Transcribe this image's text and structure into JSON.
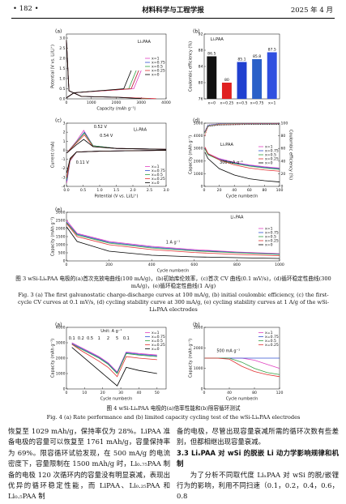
{
  "header": {
    "page": "• 182 •",
    "journal": "材料科学与工程学报",
    "date": "2025 年 4 月"
  },
  "chart_data": [
    {
      "type": "line",
      "label": "(a)",
      "annotations": [
        "LiₓPAA"
      ],
      "xlabel": "Capacity (mAh g⁻¹)",
      "ylabel": "Potential (V vs. Li/Li⁺)",
      "xlim": [
        0,
        4000
      ],
      "xticks": [
        0,
        1000,
        2000,
        3000,
        4000
      ],
      "ylim": [
        0,
        3.2
      ],
      "yticks": [
        {
          "value": 0,
          "label": "0.0"
        },
        0.5,
        {
          "value": 1,
          "label": "1.0"
        },
        1.5,
        {
          "value": 2,
          "label": "2.0"
        },
        2.5,
        {
          "value": 3,
          "label": "3.0"
        }
      ],
      "legend": "center right",
      "series": [
        {
          "name": "x=1",
          "color": "#e040c0",
          "x": [
            0,
            100,
            600,
            2000,
            3500,
            null,
            0,
            300,
            2700,
            3000
          ],
          "values": [
            2.9,
            0.4,
            0.12,
            0.08,
            0.01,
            null,
            0.05,
            0.3,
            0.5,
            1.4
          ]
        },
        {
          "name": "x=0.75",
          "color": "#3050d0",
          "x": [
            0,
            100,
            600,
            2000,
            3400,
            null,
            0,
            300,
            2600,
            2900
          ],
          "values": [
            2.9,
            0.4,
            0.12,
            0.08,
            0.01,
            null,
            0.05,
            0.3,
            0.5,
            1.4
          ]
        },
        {
          "name": "x=0.5",
          "color": "#30a040",
          "x": [
            0,
            100,
            600,
            2000,
            3300,
            null,
            0,
            300,
            2500,
            2800
          ],
          "values": [
            2.9,
            0.4,
            0.12,
            0.08,
            0.01,
            null,
            0.05,
            0.3,
            0.5,
            1.4
          ]
        },
        {
          "name": "x=0.25",
          "color": "#e03030",
          "x": [
            0,
            100,
            600,
            2000,
            3600,
            null,
            0,
            300,
            2600,
            2900
          ],
          "values": [
            2.9,
            0.4,
            0.12,
            0.08,
            0.01,
            null,
            0.05,
            0.3,
            0.5,
            1.4
          ]
        },
        {
          "name": "x=0",
          "color": "#000000",
          "x": [
            0,
            100,
            600,
            2000,
            3000,
            null,
            0,
            300,
            2300,
            2600
          ],
          "values": [
            2.9,
            0.4,
            0.12,
            0.08,
            0.01,
            null,
            0.05,
            0.3,
            0.5,
            1.4
          ]
        }
      ]
    },
    {
      "type": "bar",
      "label": "(b)",
      "annotations": [
        "LiₓPAA"
      ],
      "ylabel": "Coulombic efficiency (%)",
      "categories": [
        "x=0",
        "x=0.25",
        "x=0.5",
        "x=0.75",
        "x=1"
      ],
      "values": [
        86.5,
        80,
        85.1,
        85.8,
        87.5
      ],
      "colors": [
        "#111111",
        "#e02020",
        "#2040d0",
        "#2a60c8",
        "#3050e0"
      ],
      "ylim": [
        76,
        92
      ],
      "yticks": [
        76,
        80,
        84,
        88,
        92
      ]
    },
    {
      "type": "line",
      "label": "(c)",
      "annotations": [
        "LiₓPAA",
        "0.52 V",
        "0.54 V",
        "0.11 V"
      ],
      "xlabel": "Potential (V vs. Li/Li⁺)",
      "ylabel": "Current (mA)",
      "xlim": [
        0,
        3
      ],
      "xticks": [
        {
          "value": 0,
          "label": "0.0"
        },
        0.5,
        {
          "value": 1,
          "label": "1.0"
        },
        1.5,
        {
          "value": 2,
          "label": "2.0"
        },
        2.5,
        {
          "value": 3,
          "label": "3.0"
        }
      ],
      "ylim": [
        -4,
        3
      ],
      "yticks": [
        -4,
        -3,
        -2,
        -1,
        0,
        1,
        2,
        3
      ],
      "legend": "lower right",
      "series": [
        {
          "name": "x=1",
          "color": "#e040c0",
          "x": [
            0.01,
            0.11,
            0.3,
            1,
            2,
            3,
            null,
            0.01,
            0.3,
            0.52,
            0.8,
            1.5,
            3
          ],
          "values": [
            -3.6,
            -1.2,
            -0.2,
            -0.1,
            -0.05,
            0,
            null,
            -0.3,
            1,
            2.2,
            0.5,
            0.2,
            0.1
          ]
        },
        {
          "name": "x=0.75",
          "color": "#3050d0",
          "x": [
            0.01,
            0.11,
            0.3,
            1,
            2,
            3,
            null,
            0.01,
            0.3,
            0.54,
            0.8,
            1.5,
            3
          ],
          "values": [
            -3.4,
            -1.1,
            -0.2,
            -0.1,
            -0.05,
            0,
            null,
            -0.3,
            0.9,
            2,
            0.5,
            0.2,
            0.1
          ]
        },
        {
          "name": "x=0.5",
          "color": "#30a040",
          "x": [
            0.01,
            0.11,
            0.3,
            1,
            2,
            3,
            null,
            0.01,
            0.3,
            0.54,
            0.8,
            1.5,
            3
          ],
          "values": [
            -3.2,
            -1.1,
            -0.2,
            -0.1,
            -0.05,
            0,
            null,
            -0.3,
            0.9,
            1.9,
            0.5,
            0.2,
            0.1
          ]
        },
        {
          "name": "x=0.25",
          "color": "#e03030",
          "x": [
            0.01,
            0.11,
            0.3,
            1,
            2,
            3,
            null,
            0.01,
            0.3,
            0.54,
            0.8,
            1.5,
            3
          ],
          "values": [
            -3,
            -1,
            -0.2,
            -0.1,
            -0.05,
            0,
            null,
            -0.3,
            0.8,
            1.7,
            0.4,
            0.2,
            0.1
          ]
        },
        {
          "name": "x=0",
          "color": "#000000",
          "x": [
            0.01,
            0.11,
            0.3,
            1,
            2,
            3,
            null,
            0.01,
            0.3,
            0.52,
            0.8,
            1.5,
            3
          ],
          "values": [
            -2.5,
            -0.9,
            -0.2,
            -0.1,
            -0.05,
            0,
            null,
            -0.3,
            0.6,
            1.2,
            0.4,
            0.2,
            0.1
          ]
        }
      ]
    },
    {
      "type": "line",
      "label": "(d)",
      "annotations": [
        "LiₓPAA",
        "300 mA g⁻¹"
      ],
      "xlabel": "Cycle number/n",
      "ylabel": "Capacity (mAh g⁻¹)",
      "y2label": "Coulombic efficiency (%)",
      "xlim": [
        0,
        100
      ],
      "xticks": [
        0,
        20,
        40,
        60,
        80,
        100
      ],
      "ylim": [
        0,
        5000
      ],
      "yticks": [
        0,
        1000,
        2000,
        3000,
        4000,
        5000
      ],
      "y2lim": [
        0,
        100
      ],
      "y2ticks": [
        0,
        20,
        40,
        60,
        80,
        100
      ],
      "legend": "center right",
      "x": [
        1,
        5,
        20,
        40,
        60,
        80,
        100
      ],
      "series": [
        {
          "name": "x=1",
          "color": "#e040c0",
          "values": [
            3100,
            2600,
            2200,
            1900,
            1700,
            1550,
            1450
          ]
        },
        {
          "name": "x=0.75",
          "color": "#3050d0",
          "values": [
            3000,
            2550,
            2150,
            1850,
            1650,
            1500,
            1400
          ]
        },
        {
          "name": "x=0.5",
          "color": "#30a040",
          "values": [
            2950,
            2500,
            2100,
            1800,
            1600,
            1450,
            1350
          ]
        },
        {
          "name": "x=0.25",
          "color": "#e03030",
          "values": [
            3100,
            2600,
            2100,
            1700,
            1450,
            1300,
            1200
          ]
        },
        {
          "name": "x=0",
          "color": "#000000",
          "values": [
            2700,
            2200,
            1400,
            900,
            600,
            450,
            350
          ]
        },
        {
          "color": "#e040c0",
          "axis": "y2",
          "values": [
            87,
            97,
            99,
            99,
            99.5,
            99.5,
            99.5
          ]
        },
        {
          "color": "#3050d0",
          "axis": "y2",
          "values": [
            86,
            97,
            99,
            99,
            99.5,
            99.5,
            99.5
          ]
        },
        {
          "color": "#30a040",
          "axis": "y2",
          "values": [
            85,
            96,
            98.5,
            99,
            99,
            99,
            99
          ]
        },
        {
          "color": "#e03030",
          "axis": "y2",
          "values": [
            80,
            95,
            98,
            98.5,
            99,
            99,
            99
          ]
        },
        {
          "color": "#000000",
          "axis": "y2",
          "values": [
            86,
            95,
            97,
            97.5,
            98,
            98,
            98
          ]
        }
      ]
    },
    {
      "type": "line",
      "label": "(e)",
      "annotations": [
        "LiₓPAA",
        "1 A g⁻¹"
      ],
      "xlabel": "Cycle number/n",
      "ylabel": "Capacity (mAh g⁻¹)",
      "xlim": [
        0,
        1000
      ],
      "xticks": [
        0,
        200,
        400,
        600,
        800,
        1000
      ],
      "ylim": [
        0,
        3000
      ],
      "yticks": [
        0,
        500,
        1000,
        1500,
        2000,
        2500,
        3000
      ],
      "legend": "center right",
      "x": [
        1,
        50,
        200,
        400,
        600,
        800,
        1000
      ],
      "series": [
        {
          "name": "x=1",
          "color": "#e040c0",
          "values": [
            2500,
            1700,
            1200,
            900,
            700,
            550,
            450
          ]
        },
        {
          "name": "x=0.75",
          "color": "#3050d0",
          "values": [
            2400,
            1650,
            1150,
            850,
            650,
            520,
            420
          ]
        },
        {
          "name": "x=0.5",
          "color": "#30a040",
          "values": [
            2350,
            1600,
            1100,
            800,
            620,
            500,
            400
          ]
        },
        {
          "name": "x=0.25",
          "color": "#e03030",
          "values": [
            2300,
            1500,
            1000,
            700,
            520,
            400,
            320
          ]
        },
        {
          "name": "x=0",
          "color": "#000000",
          "values": [
            2100,
            1200,
            600,
            350,
            250,
            200,
            150
          ]
        }
      ]
    },
    {
      "type": "line",
      "label": "(a)",
      "annotations": [
        "Unit: A g⁻¹",
        "0.1",
        "0.2",
        "0.5",
        "1",
        "2",
        "5",
        "0.1"
      ],
      "xlabel": "Cycle number/n",
      "ylabel": "Capacity (mAh g⁻¹)",
      "xlim": [
        0,
        55
      ],
      "xticks": [
        0,
        10,
        20,
        30,
        40,
        50
      ],
      "ylim": [
        0,
        4000
      ],
      "yticks": [
        0,
        1000,
        2000,
        3000,
        4000
      ],
      "legend": "upper right",
      "x": [
        3,
        8,
        13,
        18,
        23,
        28,
        33,
        40,
        50
      ],
      "series": [
        {
          "name": "x=1",
          "color": "#e040c0",
          "values": [
            3000,
            2700,
            2400,
            2100,
            1700,
            1100,
            2400,
            2300,
            2200
          ]
        },
        {
          "name": "x=0.75",
          "color": "#3050d0",
          "values": [
            2950,
            2650,
            2350,
            2050,
            1650,
            1050,
            2350,
            2250,
            2150
          ]
        },
        {
          "name": "x=0.5",
          "color": "#30a040",
          "values": [
            2900,
            2600,
            2300,
            2000,
            1600,
            1000,
            2300,
            2200,
            2100
          ]
        },
        {
          "name": "x=0.25",
          "color": "#e03030",
          "values": [
            2900,
            2500,
            2150,
            1800,
            1400,
            800,
            2100,
            2000,
            1900
          ]
        },
        {
          "name": "x=0",
          "color": "#000000",
          "values": [
            2700,
            2200,
            1700,
            1200,
            700,
            200,
            1400,
            1200,
            1000
          ]
        }
      ]
    },
    {
      "type": "line",
      "label": "(b)",
      "annotations": [
        "500 mA g⁻¹"
      ],
      "xlabel": "Cycle number/n",
      "ylabel": "Capacity (mAh g⁻¹)",
      "xlim": [
        0,
        120
      ],
      "xticks": [
        0,
        40,
        80,
        120
      ],
      "ylim": [
        0,
        3000
      ],
      "yticks": [
        0,
        1000,
        2000,
        3000
      ],
      "legend": "upper right",
      "x": [
        1,
        20,
        40,
        60,
        80,
        100,
        120
      ],
      "series": [
        {
          "name": "x=1",
          "color": "#e040c0",
          "values": [
            1500,
            1500,
            1500,
            1500,
            1400,
            1200,
            1000
          ]
        },
        {
          "name": "x=0.75",
          "color": "#3050d0",
          "values": [
            1500,
            1500,
            1500,
            1500,
            1500,
            1500,
            1500
          ]
        },
        {
          "name": "x=0.5",
          "color": "#30a040",
          "values": [
            1500,
            1500,
            1500,
            1300,
            1000,
            800,
            700
          ]
        },
        {
          "name": "x=0.25",
          "color": "#e03030",
          "values": [
            1500,
            1500,
            1450,
            1100,
            850,
            700,
            600
          ]
        }
      ]
    }
  ],
  "figure3": {
    "caption_cn": "图 3  wSi-LiₓPAA 电极的(a)首次充放电曲线(100 mA/g)，(b)初始库伦效率，(c)首次 CV 曲线(0.1 mV/s)，(d)循环稳定性曲线(300 mA/g)，(e)循环稳定性曲线(1 A/g)",
    "caption_en": "Fig. 3  (a) The first galvanostatic charge-discharge curves at 100 mA/g, (b) initial coulombic efficiency, (c) the first-cycle CV curves at 0.1 mV/s, (d) cycling stability curve at 300 mA/g, (e) cycling stability curves at 1 A/g of the wSi-LiₓPAA electrodes"
  },
  "figure4": {
    "caption_cn": "图 4  wSi-LiₓPAA 电极的(a)倍率性能和(b)限容循环测试",
    "caption_en": "Fig. 4  (a) Rate performance and (b) limited capacity cycling test of the wSi-LiₓPAA electrodes"
  },
  "body": {
    "left": "恢复至 1029 mAh/g，保持率仅为 28%。LiPAA 准备电极的容量可以恢复至 1761 mAh/g，容量保持率为 69%。限容循环试验发现，在 500 mA/g 的电流密度下，容量限制在 1500 mAh/g 时，Li₀.₇₅PAA 制备的电极 120 次循环内的容量没有明显衰减，表现出优异的循环稳定性能，而 LiPAA、Li₀.₂₅PAA 和 Li₀.₅PAA 制",
    "right_para": "备的电极，尽管出现容量衰减所需的循环次数有些差别，但都相继出现容量衰减。",
    "heading": "3.3  LiₓPAA 对 wSi 的脱嵌 Li 动力学影响规律和机制",
    "right_para2": "为了分析不同取代度 LiₓPAA 对 wSi 的脱/嵌锂行为的影响，利用不同扫速（0.1，0.2，0.4，0.6，0.8"
  }
}
